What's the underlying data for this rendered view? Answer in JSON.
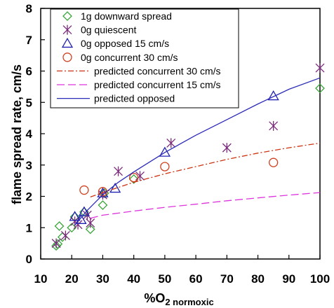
{
  "chart_data": {
    "type": "scatter",
    "xlabel": "%O",
    "xlabel_sub": "2 normoxic",
    "ylabel": "flame spread rate, cm/s",
    "xlim": [
      10,
      100
    ],
    "ylim": [
      0,
      8
    ],
    "x_ticks": [
      "10",
      "20",
      "30",
      "40",
      "50",
      "60",
      "70",
      "80",
      "90",
      "100"
    ],
    "y_ticks": [
      "0",
      "1",
      "2",
      "3",
      "4",
      "5",
      "6",
      "7",
      "8"
    ],
    "legend_position": "top-left",
    "series": [
      {
        "name": "1g downward spread",
        "kind": "marker",
        "marker": "diamond",
        "color": "#3aa63a",
        "points": [
          [
            15,
            0.42
          ],
          [
            15.5,
            0.48
          ],
          [
            16,
            1.05
          ],
          [
            17,
            0.7
          ],
          [
            20,
            1.0
          ],
          [
            21,
            1.35
          ],
          [
            24,
            1.5
          ],
          [
            26,
            0.95
          ],
          [
            30,
            1.72
          ],
          [
            30.5,
            2.1
          ],
          [
            40,
            2.55
          ],
          [
            100,
            5.45
          ]
        ]
      },
      {
        "name": "0g quiescent",
        "kind": "marker",
        "marker": "asterisk",
        "color": "#7a2a7a",
        "points": [
          [
            15,
            0.5
          ],
          [
            18,
            0.75
          ],
          [
            21,
            1.2
          ],
          [
            22,
            1.1
          ],
          [
            25,
            1.4
          ],
          [
            26,
            1.15
          ],
          [
            30,
            2.05
          ],
          [
            35,
            2.8
          ],
          [
            42,
            2.65
          ],
          [
            52,
            3.7
          ],
          [
            70,
            3.55
          ],
          [
            85,
            4.25
          ],
          [
            100,
            6.1
          ]
        ]
      },
      {
        "name": "0g opposed 15 cm/s",
        "kind": "marker",
        "marker": "triangle",
        "color": "#2020b0",
        "points": [
          [
            21,
            1.35
          ],
          [
            23,
            1.25
          ],
          [
            24,
            1.5
          ],
          [
            30,
            2.1
          ],
          [
            34,
            2.25
          ],
          [
            50,
            3.4
          ],
          [
            85,
            5.2
          ]
        ]
      },
      {
        "name": "0g concurrent 30 cm/s",
        "kind": "marker",
        "marker": "circle",
        "color": "#d04020",
        "points": [
          [
            24,
            2.2
          ],
          [
            30,
            2.15
          ],
          [
            40,
            2.6
          ],
          [
            50,
            2.95
          ],
          [
            85,
            3.08
          ]
        ]
      },
      {
        "name": "predicted concurrent 30 cm/s",
        "kind": "line",
        "dash": "8,3,2,3",
        "color": "#cc3311",
        "points": [
          [
            26,
            1.98
          ],
          [
            30,
            2.12
          ],
          [
            40,
            2.45
          ],
          [
            50,
            2.72
          ],
          [
            60,
            2.95
          ],
          [
            70,
            3.18
          ],
          [
            80,
            3.38
          ],
          [
            90,
            3.55
          ],
          [
            100,
            3.7
          ]
        ]
      },
      {
        "name": "predicted concurrent 15 cm/s",
        "kind": "line",
        "dash": "11,5",
        "color": "#dd33dd",
        "points": [
          [
            26,
            1.3
          ],
          [
            30,
            1.4
          ],
          [
            40,
            1.53
          ],
          [
            50,
            1.65
          ],
          [
            60,
            1.75
          ],
          [
            70,
            1.86
          ],
          [
            80,
            1.95
          ],
          [
            90,
            2.04
          ],
          [
            100,
            2.12
          ]
        ]
      },
      {
        "name": "predicted opposed",
        "kind": "line",
        "dash": "",
        "color": "#2b2bb8",
        "points": [
          [
            21,
            1.08
          ],
          [
            25,
            1.55
          ],
          [
            30,
            2.05
          ],
          [
            35,
            2.45
          ],
          [
            40,
            2.78
          ],
          [
            50,
            3.4
          ],
          [
            60,
            3.95
          ],
          [
            70,
            4.45
          ],
          [
            80,
            4.95
          ],
          [
            90,
            5.42
          ],
          [
            100,
            5.78
          ]
        ]
      }
    ]
  }
}
